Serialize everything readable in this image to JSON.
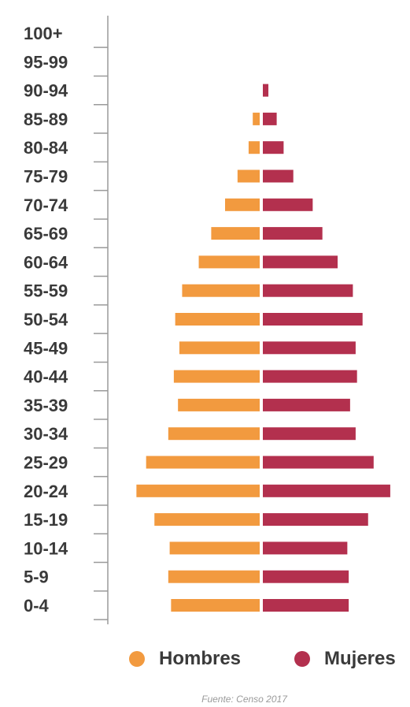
{
  "chart_data": {
    "type": "bar",
    "categories": [
      "100+",
      "95-99",
      "90-94",
      "85-89",
      "80-84",
      "75-79",
      "70-74",
      "65-69",
      "60-64",
      "55-59",
      "50-54",
      "45-49",
      "40-44",
      "35-39",
      "30-34",
      "25-29",
      "20-24",
      "15-19",
      "10-14",
      "5-9",
      "0-4"
    ],
    "series": [
      {
        "name": "Hombres",
        "color": "#f29a3f",
        "values": [
          0,
          0,
          0,
          0.5,
          0.8,
          1.6,
          2.5,
          3.5,
          4.4,
          5.6,
          6.1,
          5.8,
          6.2,
          5.9,
          6.6,
          8.2,
          8.9,
          7.6,
          6.5,
          6.6,
          6.4
        ]
      },
      {
        "name": "Mujeres",
        "color": "#b3304e",
        "values": [
          0,
          0,
          0.4,
          1.0,
          1.5,
          2.2,
          3.6,
          4.3,
          5.4,
          6.5,
          7.2,
          6.7,
          6.8,
          6.3,
          6.7,
          8.0,
          9.2,
          7.6,
          6.1,
          6.2,
          6.2
        ]
      }
    ],
    "grid": false
  },
  "legend": {
    "hombres_label": "Hombres",
    "mujeres_label": "Mujeres"
  },
  "source": "Fuente: Censo 2017"
}
